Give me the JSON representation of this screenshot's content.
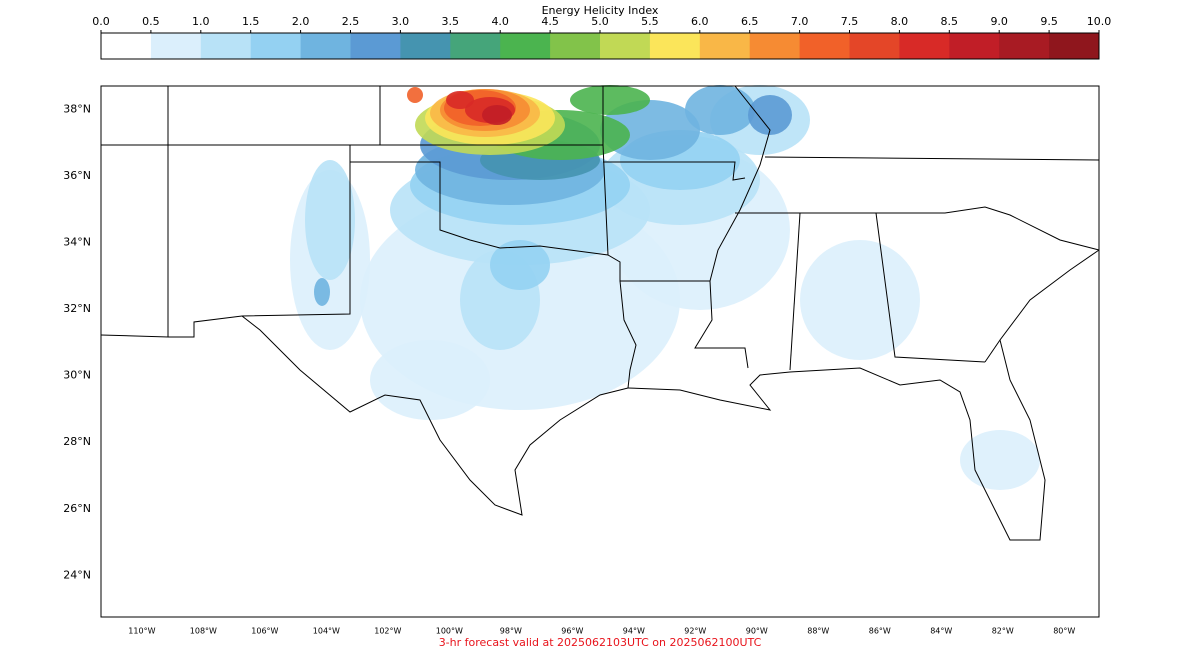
{
  "colorbar": {
    "title": "Energy Helicity Index",
    "lim": [
      0,
      10
    ],
    "ticks": [
      {
        "value": 0,
        "label": "0.0"
      },
      {
        "value": 0.5,
        "label": "0.5"
      },
      {
        "value": 1,
        "label": "1.0"
      },
      {
        "value": 1.5,
        "label": "1.5"
      },
      {
        "value": 2,
        "label": "2.0"
      },
      {
        "value": 2.5,
        "label": "2.5"
      },
      {
        "value": 3,
        "label": "3.0"
      },
      {
        "value": 3.5,
        "label": "3.5"
      },
      {
        "value": 4,
        "label": "4.0"
      },
      {
        "value": 4.5,
        "label": "4.5"
      },
      {
        "value": 5,
        "label": "5.0"
      },
      {
        "value": 5.5,
        "label": "5.5"
      },
      {
        "value": 6,
        "label": "6.0"
      },
      {
        "value": 6.5,
        "label": "6.5"
      },
      {
        "value": 7,
        "label": "7.0"
      },
      {
        "value": 7.5,
        "label": "7.5"
      },
      {
        "value": 8,
        "label": "8.0"
      },
      {
        "value": 8.5,
        "label": "8.5"
      },
      {
        "value": 9,
        "label": "9.0"
      },
      {
        "value": 9.5,
        "label": "9.5"
      },
      {
        "value": 10,
        "label": "10.0"
      }
    ],
    "colors": [
      "#ffffff",
      "#dbeffc",
      "#b8e2f7",
      "#94d1f2",
      "#6fb4e0",
      "#5b9ad4",
      "#4594b0",
      "#45a57a",
      "#4bb44f",
      "#82c34a",
      "#c1d955",
      "#fbe55a",
      "#f9b747",
      "#f68b33",
      "#f16129",
      "#e44628",
      "#d82a27",
      "#c11e27",
      "#a81b23",
      "#8f161d"
    ]
  },
  "map": {
    "lat_lim": [
      22.75,
      38.7
    ],
    "lon_lim": [
      -111.33,
      -78.87
    ],
    "lat_ticks": [
      {
        "value": 38,
        "label": "38°N"
      },
      {
        "value": 36,
        "label": "36°N"
      },
      {
        "value": 34,
        "label": "34°N"
      },
      {
        "value": 32,
        "label": "32°N"
      },
      {
        "value": 30,
        "label": "30°N"
      },
      {
        "value": 28,
        "label": "28°N"
      },
      {
        "value": 26,
        "label": "26°N"
      },
      {
        "value": 24,
        "label": "24°N"
      }
    ],
    "lon_ticks": [
      {
        "value": -110,
        "label": "110°W"
      },
      {
        "value": -108,
        "label": "108°W"
      },
      {
        "value": -106,
        "label": "106°W"
      },
      {
        "value": -104,
        "label": "104°W"
      },
      {
        "value": -102,
        "label": "102°W"
      },
      {
        "value": -100,
        "label": "100°W"
      },
      {
        "value": -98,
        "label": "98°W"
      },
      {
        "value": -96,
        "label": "96°W"
      },
      {
        "value": -94,
        "label": "94°W"
      },
      {
        "value": -92,
        "label": "92°W"
      },
      {
        "value": -90,
        "label": "90°W"
      },
      {
        "value": -88,
        "label": "88°W"
      },
      {
        "value": -86,
        "label": "86°W"
      },
      {
        "value": -84,
        "label": "84°W"
      },
      {
        "value": -82,
        "label": "82°W"
      },
      {
        "value": -80,
        "label": "80°W"
      }
    ]
  },
  "footer": "3-hr forecast valid at 2025062103UTC on 2025062100UTC"
}
